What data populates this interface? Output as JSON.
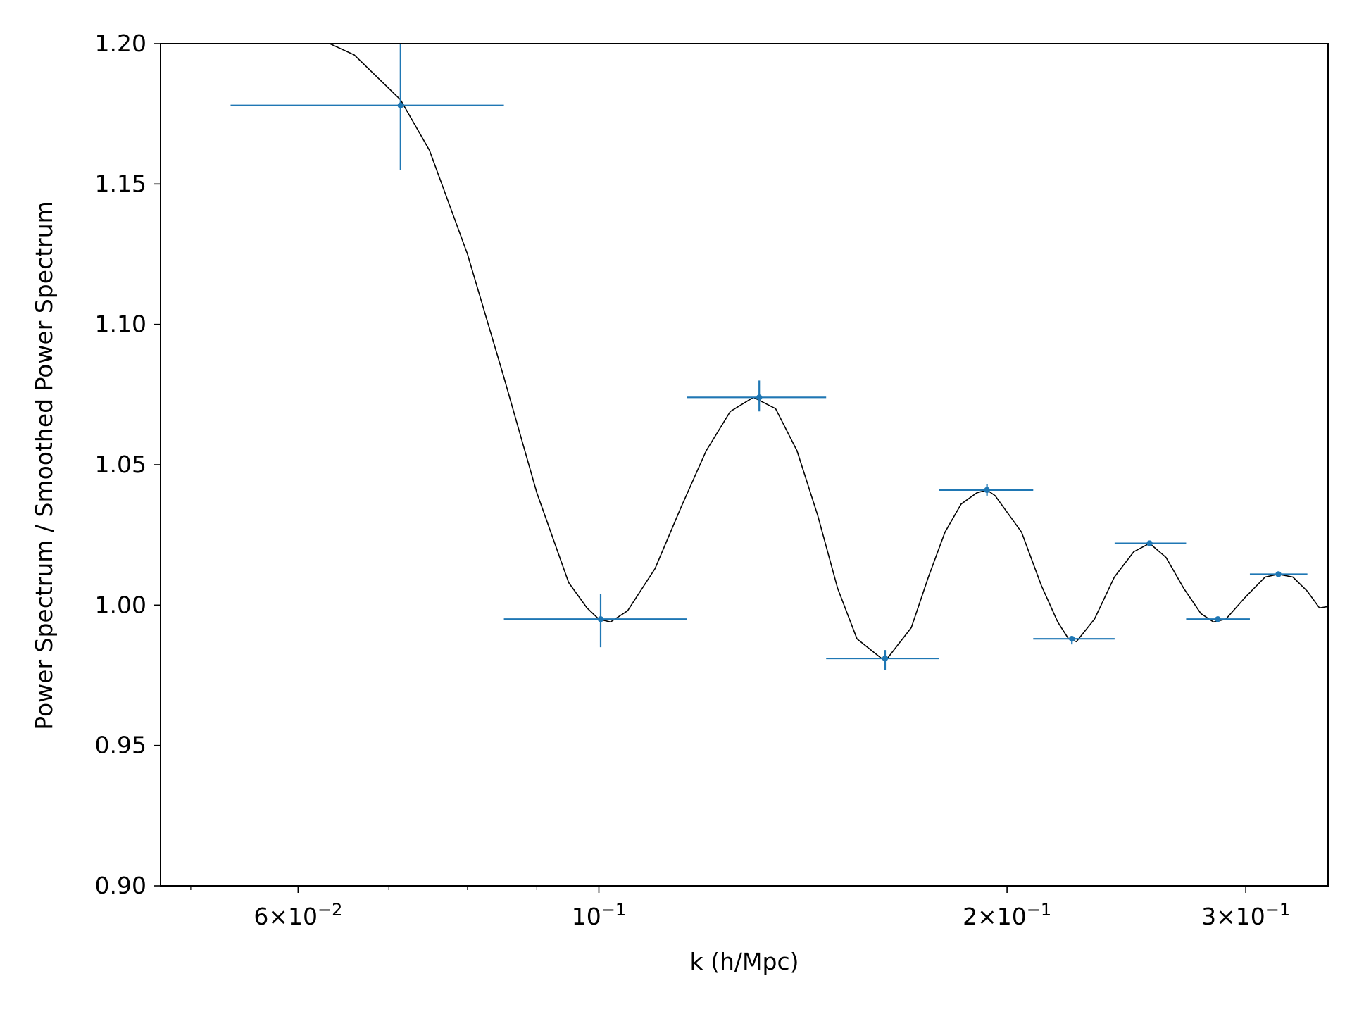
{
  "chart_data": {
    "type": "scatter",
    "title": "",
    "xlabel": "k (h/Mpc)",
    "ylabel": "Power Spectrum / Smoothed Power Spectrum",
    "xscale": "log",
    "xlim": [
      0.0475,
      0.345
    ],
    "ylim": [
      0.9,
      1.2
    ],
    "grid": false,
    "legend": "none",
    "x_major_tick_labels": [
      {
        "value": 0.06,
        "mantissa": "6",
        "exponent": "−2"
      },
      {
        "value": 0.1,
        "mantissa": "",
        "exponent": "−1"
      },
      {
        "value": 0.2,
        "mantissa": "2",
        "exponent": "−1"
      },
      {
        "value": 0.3,
        "mantissa": "3",
        "exponent": "−1"
      }
    ],
    "x_minor_ticks": [
      0.05,
      0.06,
      0.07,
      0.08,
      0.09,
      0.2,
      0.3
    ],
    "y_ticks": [
      {
        "value": 0.9,
        "label": "0.90"
      },
      {
        "value": 0.95,
        "label": "0.95"
      },
      {
        "value": 1.0,
        "label": "1.00"
      },
      {
        "value": 1.05,
        "label": "1.05"
      },
      {
        "value": 1.1,
        "label": "1.10"
      },
      {
        "value": 1.15,
        "label": "1.15"
      },
      {
        "value": 1.2,
        "label": "1.20"
      }
    ],
    "series": [
      {
        "kind": "errorbar",
        "color": "#1f77b4",
        "points": [
          {
            "x": 0.0714,
            "y": 1.178,
            "xlo": 0.0535,
            "xhi": 0.0851,
            "ylo": 1.155,
            "yhi": 1.2
          },
          {
            "x": 0.1003,
            "y": 0.995,
            "xlo": 0.0851,
            "xhi": 0.1161,
            "ylo": 0.985,
            "yhi": 1.004
          },
          {
            "x": 0.1313,
            "y": 1.074,
            "xlo": 0.1161,
            "xhi": 0.1471,
            "ylo": 1.069,
            "yhi": 1.08
          },
          {
            "x": 0.1626,
            "y": 0.981,
            "xlo": 0.1471,
            "xhi": 0.1781,
            "ylo": 0.977,
            "yhi": 0.984
          },
          {
            "x": 0.1933,
            "y": 1.041,
            "xlo": 0.1781,
            "xhi": 0.2091,
            "ylo": 1.039,
            "yhi": 1.043
          },
          {
            "x": 0.2233,
            "y": 0.988,
            "xlo": 0.2091,
            "xhi": 0.2401,
            "ylo": 0.986,
            "yhi": 0.989
          },
          {
            "x": 0.2548,
            "y": 1.022,
            "xlo": 0.2401,
            "xhi": 0.2711,
            "ylo": 1.021,
            "yhi": 1.023
          },
          {
            "x": 0.2861,
            "y": 0.995,
            "xlo": 0.2711,
            "xhi": 0.3021,
            "ylo": 0.994,
            "yhi": 0.996
          },
          {
            "x": 0.3171,
            "y": 1.011,
            "xlo": 0.3021,
            "xhi": 0.3331,
            "ylo": 1.0105,
            "yhi": 1.0115
          }
        ]
      },
      {
        "kind": "line",
        "color": "#000000",
        "points": [
          [
            0.0475,
            1.212
          ],
          [
            0.055,
            1.211
          ],
          [
            0.062,
            1.202
          ],
          [
            0.066,
            1.196
          ],
          [
            0.0714,
            1.18
          ],
          [
            0.075,
            1.162
          ],
          [
            0.08,
            1.125
          ],
          [
            0.085,
            1.082
          ],
          [
            0.09,
            1.04
          ],
          [
            0.095,
            1.008
          ],
          [
            0.098,
            0.999
          ],
          [
            0.1,
            0.995
          ],
          [
            0.102,
            0.994
          ],
          [
            0.105,
            0.998
          ],
          [
            0.11,
            1.013
          ],
          [
            0.115,
            1.035
          ],
          [
            0.12,
            1.055
          ],
          [
            0.125,
            1.069
          ],
          [
            0.13,
            1.074
          ],
          [
            0.135,
            1.07
          ],
          [
            0.14,
            1.055
          ],
          [
            0.145,
            1.032
          ],
          [
            0.15,
            1.006
          ],
          [
            0.155,
            0.988
          ],
          [
            0.1626,
            0.98
          ],
          [
            0.17,
            0.992
          ],
          [
            0.175,
            1.01
          ],
          [
            0.18,
            1.026
          ],
          [
            0.185,
            1.036
          ],
          [
            0.19,
            1.04
          ],
          [
            0.1933,
            1.041
          ],
          [
            0.196,
            1.039
          ],
          [
            0.205,
            1.026
          ],
          [
            0.212,
            1.007
          ],
          [
            0.218,
            0.994
          ],
          [
            0.222,
            0.988
          ],
          [
            0.225,
            0.987
          ],
          [
            0.232,
            0.995
          ],
          [
            0.24,
            1.01
          ],
          [
            0.248,
            1.019
          ],
          [
            0.2548,
            1.022
          ],
          [
            0.262,
            1.017
          ],
          [
            0.27,
            1.006
          ],
          [
            0.278,
            0.997
          ],
          [
            0.284,
            0.994
          ],
          [
            0.29,
            0.995
          ],
          [
            0.3,
            1.003
          ],
          [
            0.31,
            1.01
          ],
          [
            0.317,
            1.011
          ],
          [
            0.325,
            1.01
          ],
          [
            0.333,
            1.005
          ],
          [
            0.34,
            0.999
          ],
          [
            0.345,
            0.9995
          ]
        ]
      }
    ]
  }
}
